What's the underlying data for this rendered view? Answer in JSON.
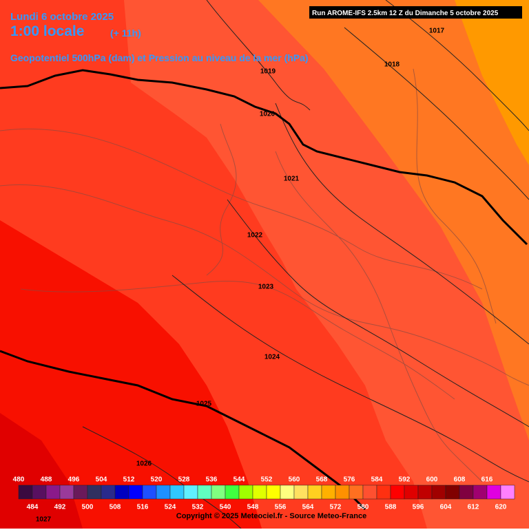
{
  "header": {
    "date": "Lundi 6 octobre 2025",
    "time": "1:00 locale",
    "lead": "(+ 11h)",
    "subtitle": "Geopotentiel 500hPa (dam) et Pression au niveau de la mer (hPa)",
    "run": "Run AROME-IFS 2.5km 12 Z du Dimanche 5 octobre 2025"
  },
  "isobar_labels": [
    1017,
    1018,
    1019,
    1020,
    1021,
    1022,
    1023,
    1024,
    1025,
    1026,
    1027
  ],
  "colorbar": {
    "levels": [
      480,
      484,
      488,
      492,
      496,
      500,
      504,
      508,
      512,
      516,
      520,
      524,
      528,
      532,
      536,
      540,
      544,
      548,
      552,
      556,
      560,
      564,
      568,
      572,
      576,
      580,
      584,
      588,
      592,
      596,
      600,
      604,
      608,
      612,
      616,
      620
    ],
    "colors": [
      "#3a0a40",
      "#581060",
      "#8a1a8a",
      "#9a3a9a",
      "#6a1a5a",
      "#303060",
      "#2a2a8c",
      "#0000c0",
      "#0000ff",
      "#1e50ff",
      "#1e90ff",
      "#30c8ff",
      "#60f0ff",
      "#60ffc0",
      "#80ff80",
      "#40ff40",
      "#a0ff00",
      "#e0ff00",
      "#ffff00",
      "#ffff80",
      "#ffe060",
      "#ffd020",
      "#ffb000",
      "#ff9000",
      "#ff7020",
      "#ff5030",
      "#ff3010",
      "#ff0000",
      "#e00000",
      "#c00000",
      "#a00000",
      "#800000",
      "#800040",
      "#a00070",
      "#e000e0",
      "#ff80ff"
    ]
  },
  "footer": {
    "copyright": "Copyright © 2025 Meteociel.fr - Source Meteo-France"
  }
}
